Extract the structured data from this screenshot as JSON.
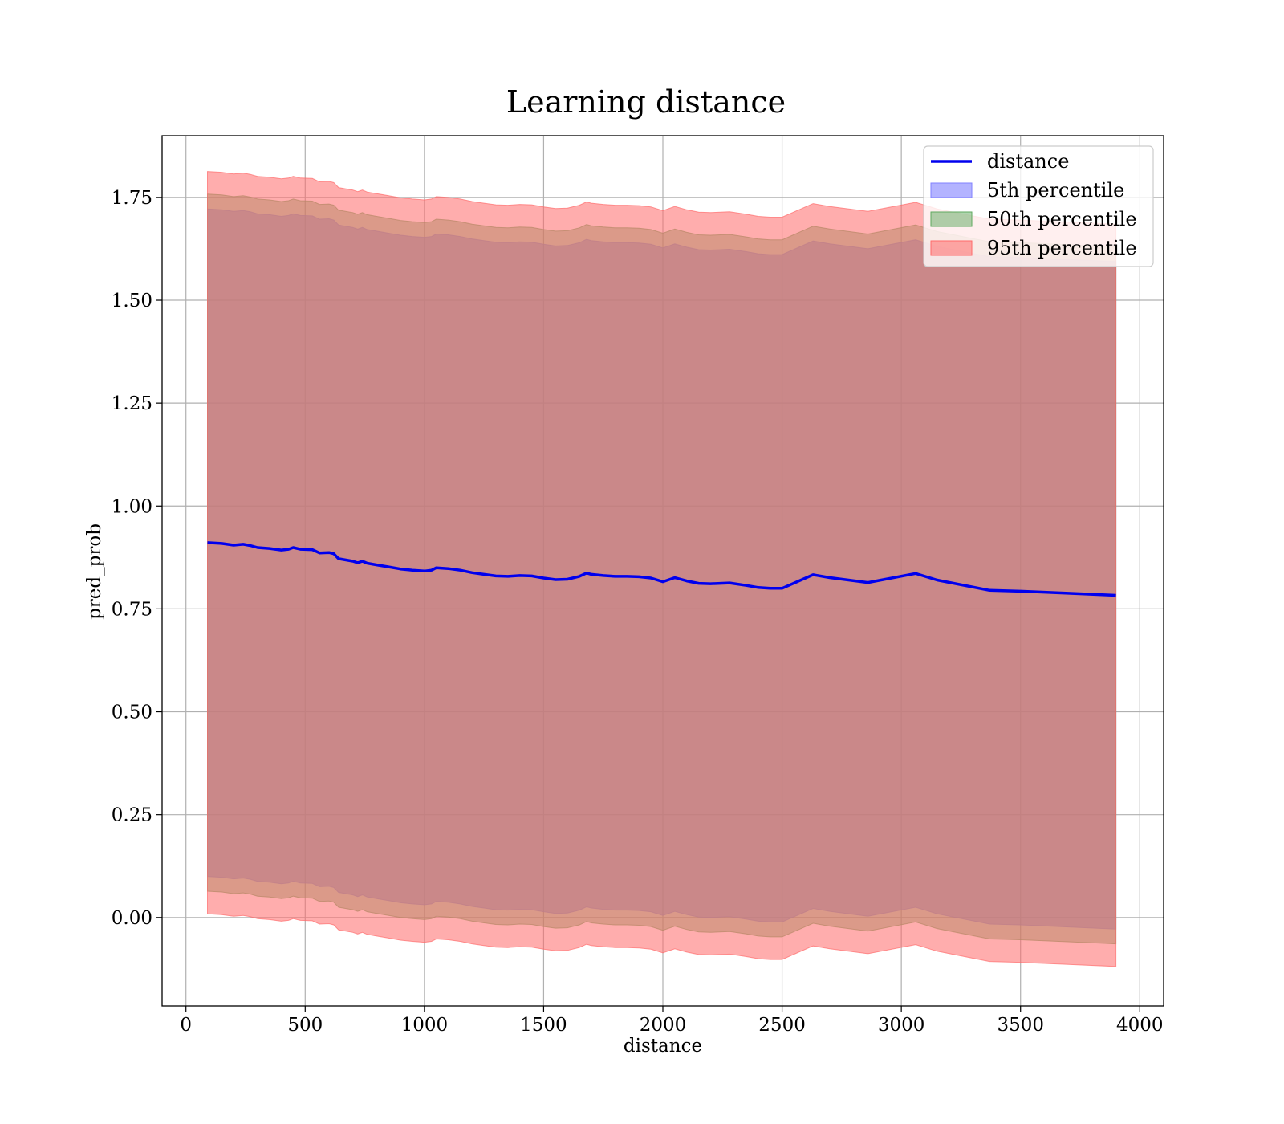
{
  "chart_data": {
    "type": "area",
    "title": "Learning distance",
    "xlabel": "distance",
    "ylabel": "pred_prob",
    "xlim": [
      -100,
      4100
    ],
    "ylim": [
      -0.215,
      1.9
    ],
    "x_ticks": [
      0,
      500,
      1000,
      1500,
      2000,
      2500,
      3000,
      3500,
      4000
    ],
    "x_tick_labels": [
      "0",
      "500",
      "1000",
      "1500",
      "2000",
      "2500",
      "3000",
      "3500",
      "4000"
    ],
    "y_ticks": [
      0,
      0.25,
      0.5,
      0.75,
      1.0,
      1.25,
      1.5,
      1.75
    ],
    "y_tick_labels": [
      "0.00",
      "0.25",
      "0.50",
      "0.75",
      "1.00",
      "1.25",
      "1.50",
      "1.75"
    ],
    "grid": true,
    "legend_position": "top-right",
    "x": [
      90,
      150,
      200,
      240,
      270,
      300,
      350,
      400,
      430,
      450,
      480,
      530,
      560,
      600,
      620,
      640,
      700,
      720,
      740,
      760,
      800,
      850,
      900,
      950,
      1000,
      1030,
      1050,
      1100,
      1150,
      1200,
      1250,
      1300,
      1350,
      1400,
      1450,
      1500,
      1550,
      1600,
      1650,
      1680,
      1700,
      1750,
      1800,
      1850,
      1900,
      1950,
      2000,
      2050,
      2100,
      2150,
      2200,
      2280,
      2350,
      2400,
      2450,
      2500,
      2630,
      2700,
      2860,
      3060,
      3150,
      3370,
      3500,
      3700,
      3900
    ],
    "series": [
      {
        "name": "distance",
        "kind": "line",
        "color": "#0000ee",
        "values": [
          0.911,
          0.909,
          0.905,
          0.907,
          0.904,
          0.899,
          0.897,
          0.893,
          0.895,
          0.899,
          0.895,
          0.894,
          0.886,
          0.887,
          0.884,
          0.872,
          0.866,
          0.862,
          0.866,
          0.861,
          0.857,
          0.852,
          0.847,
          0.844,
          0.842,
          0.844,
          0.85,
          0.848,
          0.844,
          0.838,
          0.834,
          0.83,
          0.829,
          0.831,
          0.83,
          0.825,
          0.821,
          0.822,
          0.829,
          0.837,
          0.834,
          0.831,
          0.829,
          0.829,
          0.828,
          0.825,
          0.816,
          0.826,
          0.818,
          0.812,
          0.811,
          0.813,
          0.807,
          0.802,
          0.8,
          0.8,
          0.833,
          0.826,
          0.814,
          0.836,
          0.82,
          0.795,
          0.793,
          0.788,
          0.783
        ]
      },
      {
        "name": "5th percentile",
        "kind": "band",
        "color": "#8080ff",
        "opacity": 0.6,
        "lower": [
          0.1,
          0.098,
          0.094,
          0.096,
          0.093,
          0.088,
          0.086,
          0.082,
          0.084,
          0.088,
          0.084,
          0.083,
          0.075,
          0.076,
          0.073,
          0.061,
          0.055,
          0.051,
          0.055,
          0.05,
          0.046,
          0.041,
          0.036,
          0.033,
          0.031,
          0.033,
          0.039,
          0.037,
          0.033,
          0.027,
          0.023,
          0.019,
          0.018,
          0.02,
          0.019,
          0.014,
          0.01,
          0.011,
          0.018,
          0.026,
          0.023,
          0.02,
          0.018,
          0.018,
          0.017,
          0.014,
          0.005,
          0.015,
          0.007,
          0.001,
          0.0,
          0.002,
          -0.004,
          -0.009,
          -0.011,
          -0.011,
          0.022,
          0.015,
          0.003,
          0.025,
          0.009,
          -0.016,
          -0.018,
          -0.023,
          -0.028
        ],
        "upper": [
          1.722,
          1.72,
          1.716,
          1.718,
          1.715,
          1.71,
          1.708,
          1.704,
          1.706,
          1.71,
          1.706,
          1.705,
          1.697,
          1.698,
          1.695,
          1.683,
          1.677,
          1.673,
          1.677,
          1.672,
          1.668,
          1.663,
          1.658,
          1.655,
          1.653,
          1.655,
          1.661,
          1.659,
          1.655,
          1.649,
          1.645,
          1.641,
          1.64,
          1.642,
          1.641,
          1.636,
          1.632,
          1.633,
          1.64,
          1.648,
          1.645,
          1.642,
          1.64,
          1.64,
          1.639,
          1.636,
          1.627,
          1.637,
          1.629,
          1.623,
          1.622,
          1.624,
          1.618,
          1.613,
          1.611,
          1.611,
          1.644,
          1.637,
          1.625,
          1.647,
          1.631,
          1.606,
          1.604,
          1.599,
          1.594
        ]
      },
      {
        "name": "50th percentile",
        "kind": "band",
        "color": "#5faa5f",
        "opacity": 0.5,
        "lower": [
          0.064,
          0.062,
          0.058,
          0.06,
          0.057,
          0.052,
          0.05,
          0.046,
          0.048,
          0.052,
          0.048,
          0.047,
          0.039,
          0.04,
          0.037,
          0.025,
          0.019,
          0.015,
          0.019,
          0.014,
          0.01,
          0.005,
          0.0,
          -0.003,
          -0.005,
          -0.003,
          0.003,
          0.001,
          -0.003,
          -0.009,
          -0.013,
          -0.017,
          -0.018,
          -0.016,
          -0.017,
          -0.022,
          -0.026,
          -0.025,
          -0.018,
          -0.01,
          -0.013,
          -0.016,
          -0.018,
          -0.018,
          -0.019,
          -0.022,
          -0.031,
          -0.021,
          -0.029,
          -0.035,
          -0.036,
          -0.034,
          -0.04,
          -0.045,
          -0.047,
          -0.047,
          -0.014,
          -0.021,
          -0.033,
          -0.011,
          -0.027,
          -0.052,
          -0.054,
          -0.059,
          -0.064
        ],
        "upper": [
          1.758,
          1.756,
          1.752,
          1.754,
          1.751,
          1.746,
          1.744,
          1.74,
          1.742,
          1.746,
          1.742,
          1.741,
          1.733,
          1.734,
          1.731,
          1.719,
          1.713,
          1.709,
          1.713,
          1.708,
          1.704,
          1.699,
          1.694,
          1.691,
          1.689,
          1.691,
          1.697,
          1.695,
          1.691,
          1.685,
          1.681,
          1.677,
          1.676,
          1.678,
          1.677,
          1.672,
          1.668,
          1.669,
          1.676,
          1.684,
          1.681,
          1.678,
          1.676,
          1.676,
          1.675,
          1.672,
          1.663,
          1.673,
          1.665,
          1.659,
          1.658,
          1.66,
          1.654,
          1.649,
          1.647,
          1.647,
          1.68,
          1.673,
          1.661,
          1.683,
          1.667,
          1.642,
          1.64,
          1.635,
          1.63
        ]
      },
      {
        "name": "95th percentile",
        "kind": "band",
        "color": "#ff6a6a",
        "opacity": 0.55,
        "lower": [
          0.009,
          0.007,
          0.003,
          0.005,
          0.002,
          -0.003,
          -0.005,
          -0.009,
          -0.007,
          -0.003,
          -0.007,
          -0.008,
          -0.016,
          -0.015,
          -0.018,
          -0.03,
          -0.036,
          -0.04,
          -0.036,
          -0.041,
          -0.045,
          -0.05,
          -0.055,
          -0.058,
          -0.06,
          -0.058,
          -0.052,
          -0.054,
          -0.058,
          -0.064,
          -0.068,
          -0.072,
          -0.073,
          -0.071,
          -0.072,
          -0.077,
          -0.081,
          -0.08,
          -0.073,
          -0.065,
          -0.068,
          -0.071,
          -0.073,
          -0.073,
          -0.074,
          -0.077,
          -0.086,
          -0.076,
          -0.084,
          -0.09,
          -0.091,
          -0.089,
          -0.095,
          -0.1,
          -0.102,
          -0.102,
          -0.069,
          -0.076,
          -0.088,
          -0.066,
          -0.082,
          -0.107,
          -0.109,
          -0.114,
          -0.119
        ],
        "upper": [
          1.813,
          1.811,
          1.807,
          1.809,
          1.806,
          1.801,
          1.799,
          1.795,
          1.797,
          1.801,
          1.797,
          1.796,
          1.788,
          1.789,
          1.786,
          1.774,
          1.768,
          1.764,
          1.768,
          1.763,
          1.759,
          1.754,
          1.749,
          1.746,
          1.744,
          1.746,
          1.752,
          1.75,
          1.746,
          1.74,
          1.736,
          1.732,
          1.731,
          1.733,
          1.732,
          1.727,
          1.723,
          1.724,
          1.731,
          1.739,
          1.736,
          1.733,
          1.731,
          1.731,
          1.73,
          1.727,
          1.718,
          1.728,
          1.72,
          1.714,
          1.713,
          1.715,
          1.709,
          1.704,
          1.702,
          1.702,
          1.735,
          1.728,
          1.716,
          1.738,
          1.722,
          1.697,
          1.695,
          1.69,
          1.685
        ]
      }
    ]
  }
}
